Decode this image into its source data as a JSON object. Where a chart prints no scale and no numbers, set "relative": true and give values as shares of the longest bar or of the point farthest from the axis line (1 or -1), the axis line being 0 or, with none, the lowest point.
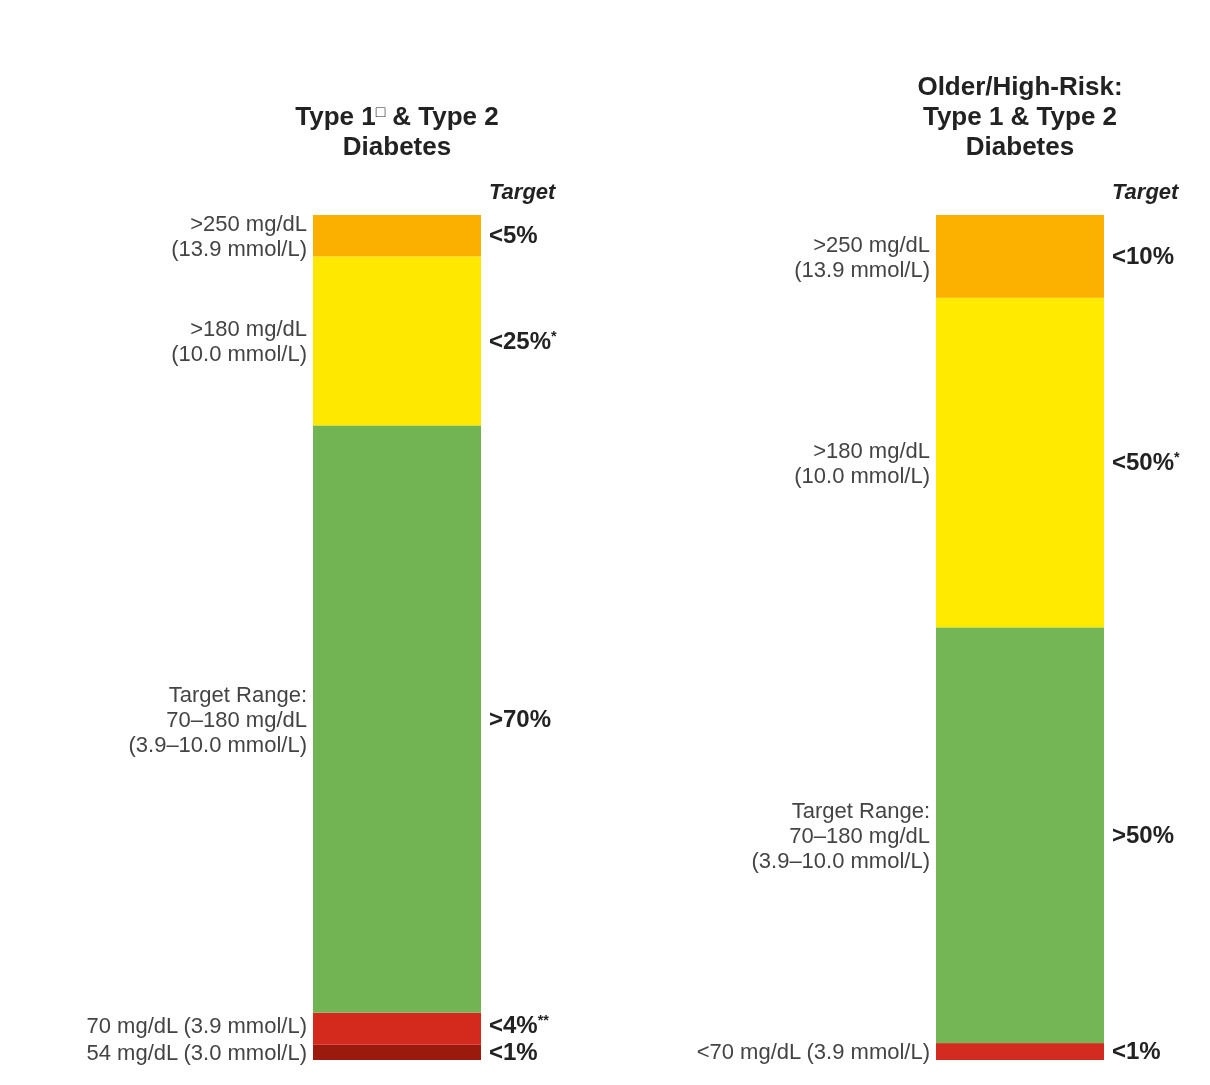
{
  "chart_data": [
    {
      "type": "bar",
      "title": "Type 1$^{□}$ & Type 2\nDiabetes",
      "stacked": true,
      "relative": true,
      "categories": [
        null
      ],
      "annotations": [
        "Target",
        "<5%",
        "<25%$^{*}$",
        ">70%",
        "<4%$^{**}$",
        "<1%"
      ],
      "series": [
        {
          "name": "54 mg/dL (3.0 mmol/L)",
          "color": "#9b1a0e",
          "values": [
            0.018
          ]
        },
        {
          "name": "70 mg/dL (3.9 mmol/L)",
          "color": "#d42a1e",
          "values": [
            0.038
          ]
        },
        {
          "name": "Target Range:\n70–180 mg/dL\n(3.9–10.0 mmol/L)",
          "color": "#72b454",
          "values": [
            0.695
          ]
        },
        {
          "name": ">180 mg/dL\n(10.0 mmol/L)",
          "color": "#ffe800",
          "values": [
            0.2
          ]
        },
        {
          "name": ">250 mg/dL\n(13.9 mmol/L)",
          "color": "#fbb000",
          "values": [
            0.049
          ]
        }
      ]
    },
    {
      "type": "bar",
      "title": "Older/High-Risk:\nType 1 & Type 2\nDiabetes",
      "stacked": true,
      "relative": true,
      "categories": [
        null
      ],
      "annotations": [
        "Target",
        "<10%",
        "<50%$^{*}$",
        ">50%",
        "<1%"
      ],
      "series": [
        {
          "name": "<70 mg/dL (3.9 mmol/L)",
          "color": "#d32b1f",
          "values": [
            0.02
          ]
        },
        {
          "name": "Target Range:\n70–180 mg/dL\n(3.9–10.0 mmol/L)",
          "color": "#74b556",
          "values": [
            0.492
          ]
        },
        {
          "name": ">180 mg/dL\n(10.0 mmol/L)",
          "color": "#ffea00",
          "values": [
            0.39
          ]
        },
        {
          "name": ">250 mg/dL\n(13.9 mmol/L)",
          "color": "#fcb100",
          "values": [
            0.098
          ]
        }
      ]
    }
  ]
}
